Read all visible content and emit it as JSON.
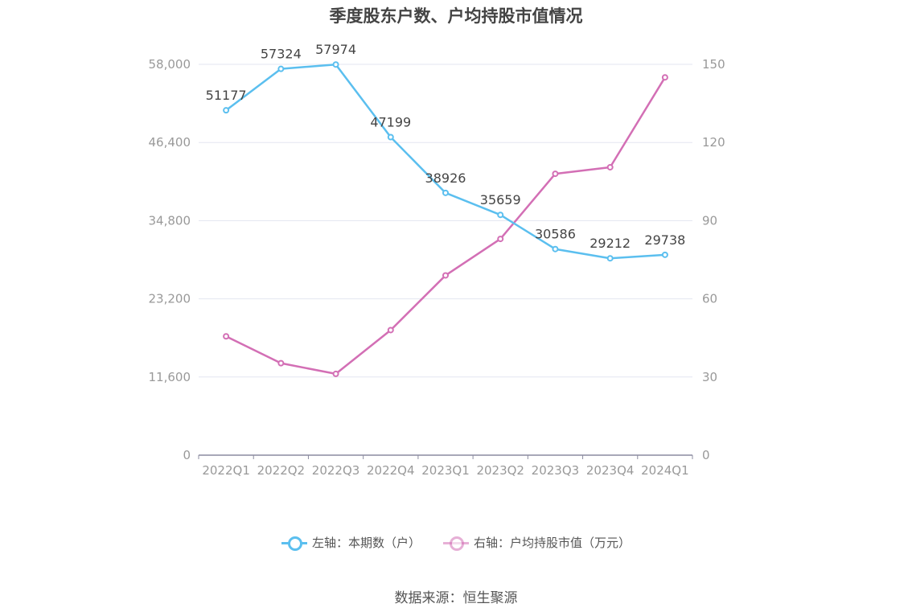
{
  "source": "数据来源：恒生聚源",
  "chart_data": {
    "type": "line",
    "title": "季度股东户数、户均持股市值情况",
    "categories": [
      "2022Q1",
      "2022Q2",
      "2022Q3",
      "2022Q4",
      "2023Q1",
      "2023Q2",
      "2023Q3",
      "2023Q4",
      "2024Q1"
    ],
    "y_left": {
      "min": 0,
      "max": 58000,
      "ticks": [
        0,
        11600,
        23200,
        34800,
        46400,
        58000
      ],
      "tick_labels": [
        "0",
        "11,600",
        "23,200",
        "34,800",
        "46,400",
        "58,000"
      ]
    },
    "y_right": {
      "min": 0,
      "max": 150,
      "ticks": [
        0,
        30,
        60,
        90,
        120,
        150
      ],
      "tick_labels": [
        "0",
        "30",
        "60",
        "90",
        "120",
        "150"
      ]
    },
    "grid": true,
    "legend_position": "bottom",
    "series": [
      {
        "name": "左轴：本期数（户）",
        "axis": "left",
        "color": "#5bbfef",
        "show_labels": true,
        "values": [
          51177,
          57324,
          57974,
          47199,
          38926,
          35659,
          30586,
          29212,
          29738
        ]
      },
      {
        "name": "右轴：户均持股市值（万元）",
        "axis": "right",
        "color": "#d36fb5",
        "show_labels": false,
        "values": [
          45.6,
          35.3,
          31.2,
          48.0,
          69.0,
          83.0,
          108.0,
          110.5,
          145.0
        ]
      }
    ]
  }
}
